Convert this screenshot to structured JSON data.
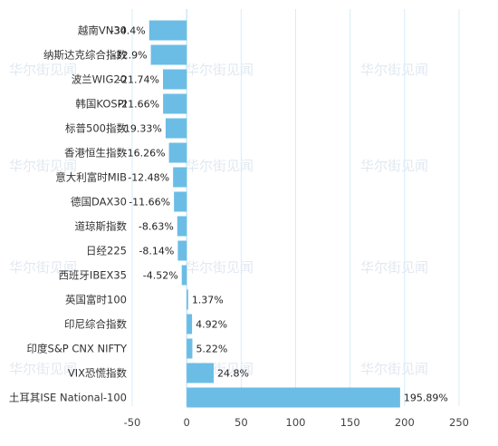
{
  "chart_data": {
    "type": "bar",
    "orientation": "horizontal",
    "categories": [
      "越南VN30",
      "纳斯达克综合指数",
      "波兰WIG20",
      "韩国KOSPI",
      "标普500指数",
      "香港恒生指数",
      "意大利富时MIB",
      "德国DAX30",
      "道琼斯指数",
      "日经225",
      "西班牙IBEX35",
      "英国富时100",
      "印尼综合指数",
      "印度S&P CNX NIFTY",
      "VIX恐慌指数",
      "土耳其ISE National-100"
    ],
    "values": [
      -34.4,
      -32.9,
      -21.74,
      -21.66,
      -19.33,
      -16.26,
      -12.48,
      -11.66,
      -8.63,
      -8.14,
      -4.52,
      1.37,
      4.92,
      5.22,
      24.8,
      195.89
    ],
    "value_labels": [
      "-34.4%",
      "-32.9%",
      "-21.74%",
      "-21.66%",
      "-19.33%",
      "-16.26%",
      "-12.48%",
      "-11.66%",
      "-8.63%",
      "-8.14%",
      "-4.52%",
      "1.37%",
      "4.92%",
      "5.22%",
      "24.8%",
      "195.89%"
    ],
    "x_ticks": [
      "-50",
      "0",
      "50",
      "100",
      "150",
      "200",
      "250"
    ],
    "xlim": [
      -50,
      250
    ],
    "grid": true,
    "bar_color": "#6bbde6",
    "grid_color": "#d7ecf8",
    "watermark_text": "华尔街见闻"
  }
}
